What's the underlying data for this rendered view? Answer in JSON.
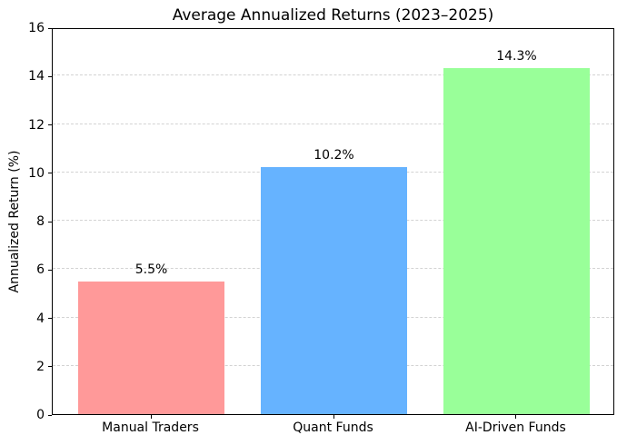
{
  "figure": {
    "background": "#ffffff",
    "axis_color": "#000000",
    "text_color": "#000000"
  },
  "chart_data": {
    "type": "bar",
    "title": "Average Annualized Returns (2023–2025)",
    "xlabel": "",
    "ylabel": "Annualized Return (%)",
    "categories": [
      "Manual Traders",
      "Quant Funds",
      "AI-Driven Funds"
    ],
    "values": [
      5.5,
      10.2,
      14.3
    ],
    "value_labels": [
      "5.5%",
      "10.2%",
      "14.3%"
    ],
    "bar_colors": [
      "#ff9999",
      "#66b3ff",
      "#99ff99"
    ],
    "ylim": [
      0,
      16
    ],
    "yticks": [
      0,
      2,
      4,
      6,
      8,
      10,
      12,
      14,
      16
    ],
    "ytick_labels": [
      "0",
      "2",
      "4",
      "6",
      "8",
      "10",
      "12",
      "14",
      "16"
    ],
    "bar_width_fraction": 0.8,
    "grid": {
      "axis": "y",
      "style": "dashed",
      "color": "#d3d3d3"
    },
    "legend": "none"
  }
}
